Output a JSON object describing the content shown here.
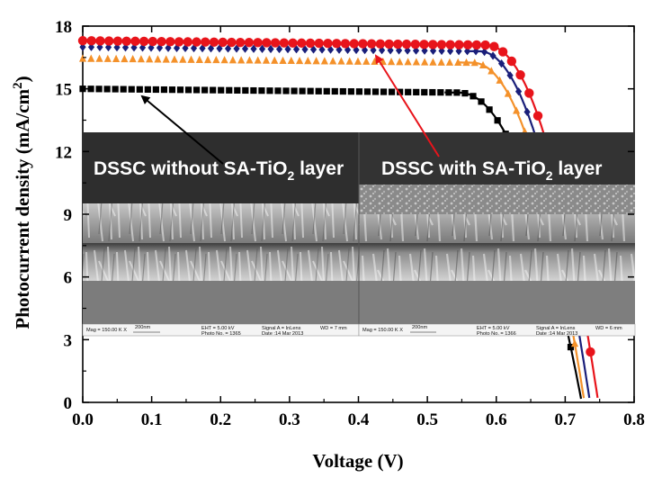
{
  "chart_data": {
    "type": "line",
    "xlabel": "Voltage (V)",
    "ylabel_main": "Photocurrent density (mA/cm",
    "ylabel_sup": "2",
    "ylabel_close": ")",
    "xlim": [
      0.0,
      0.8
    ],
    "ylim": [
      0,
      18
    ],
    "x_ticks": [
      0.0,
      0.1,
      0.2,
      0.3,
      0.4,
      0.5,
      0.6,
      0.7,
      0.8
    ],
    "x_tick_labels": [
      "0.0",
      "0.1",
      "0.2",
      "0.3",
      "0.4",
      "0.5",
      "0.6",
      "0.7",
      "0.8"
    ],
    "y_ticks": [
      0,
      3,
      6,
      9,
      12,
      15,
      18
    ],
    "y_tick_labels": [
      "0",
      "3",
      "6",
      "9",
      "12",
      "15",
      "18"
    ],
    "series": [
      {
        "name": "black squares",
        "color": "#000000",
        "marker": "square",
        "jsc": 15.0,
        "voc": 0.724,
        "knee": 0.545
      },
      {
        "name": "orange triangles",
        "color": "#f4912a",
        "marker": "triangle",
        "jsc": 16.45,
        "voc": 0.728,
        "knee": 0.565
      },
      {
        "name": "navy diamonds",
        "color": "#1a1f7a",
        "marker": "diamond",
        "jsc": 17.0,
        "voc": 0.736,
        "knee": 0.575
      },
      {
        "name": "red circles",
        "color": "#e8141b",
        "marker": "circle",
        "jsc": 17.3,
        "voc": 0.748,
        "knee": 0.585
      }
    ],
    "annotations": [
      {
        "text": "DSSC without SA-TiO",
        "sub": "2",
        "suffix": " layer",
        "arrow_color": "#000000",
        "arrow_target": [
          0.085,
          14.8
        ]
      },
      {
        "text": "DSSC with SA-TiO",
        "sub": "2",
        "suffix": " layer",
        "arrow_color": "#e8141b",
        "arrow_target": [
          0.42,
          16.7
        ]
      }
    ],
    "sem_captions": [
      {
        "mag": "Mag = 150.00 K X",
        "scale": "200nm",
        "eht": "EHT = 5.00 kV",
        "photo": "Photo No. = 1365",
        "signal": "Signal A = InLens",
        "date": "Date :14 Mar 2013",
        "wd": "WD = 7 mm"
      },
      {
        "mag": "Mag = 150.00 K X",
        "scale": "200nm",
        "eht": "EHT = 5.00 kV",
        "photo": "Photo No. = 1366",
        "signal": "Signal A = InLens",
        "date": "Date :14 Mar 2013",
        "wd": "WD = 6 mm"
      }
    ]
  }
}
